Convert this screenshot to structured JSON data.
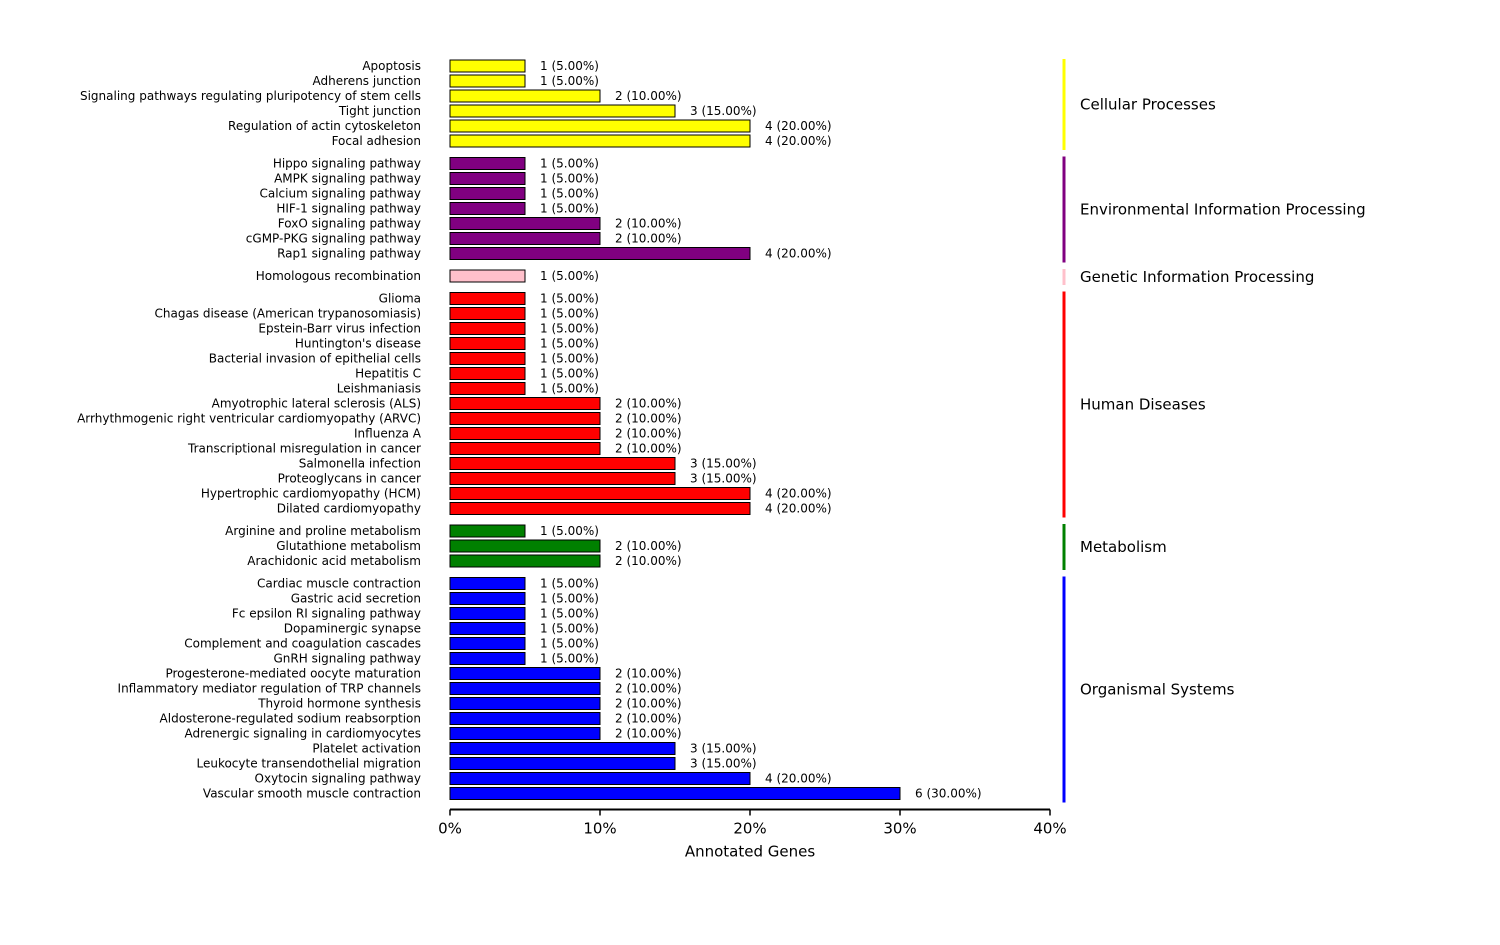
{
  "chart_data": {
    "type": "bar",
    "orientation": "horizontal",
    "title": "",
    "xlabel": "Annotated Genes",
    "ylabel": "",
    "xlim": [
      0,
      40
    ],
    "xticks": [
      "0%",
      "10%",
      "20%",
      "30%",
      "40%"
    ],
    "xtick_values": [
      0,
      10,
      20,
      30,
      40
    ],
    "grid": false,
    "legend": "none",
    "groups": [
      {
        "name": "Cellular Processes",
        "color": "#ffff00",
        "items": [
          {
            "label": "Apoptosis",
            "value": 5,
            "text": "1 (5.00%)"
          },
          {
            "label": "Adherens junction",
            "value": 5,
            "text": "1 (5.00%)"
          },
          {
            "label": "Signaling pathways regulating pluripotency of stem cells",
            "value": 10,
            "text": "2 (10.00%)"
          },
          {
            "label": "Tight junction",
            "value": 15,
            "text": "3 (15.00%)"
          },
          {
            "label": "Regulation of actin cytoskeleton",
            "value": 20,
            "text": "4 (20.00%)"
          },
          {
            "label": "Focal adhesion",
            "value": 20,
            "text": "4 (20.00%)"
          }
        ]
      },
      {
        "name": "Environmental Information Processing",
        "color": "#800080",
        "items": [
          {
            "label": "Hippo signaling pathway",
            "value": 5,
            "text": "1 (5.00%)"
          },
          {
            "label": "AMPK signaling pathway",
            "value": 5,
            "text": "1 (5.00%)"
          },
          {
            "label": "Calcium signaling pathway",
            "value": 5,
            "text": "1 (5.00%)"
          },
          {
            "label": "HIF-1 signaling pathway",
            "value": 5,
            "text": "1 (5.00%)"
          },
          {
            "label": "FoxO signaling pathway",
            "value": 10,
            "text": "2 (10.00%)"
          },
          {
            "label": "cGMP-PKG signaling pathway",
            "value": 10,
            "text": "2 (10.00%)"
          },
          {
            "label": "Rap1 signaling pathway",
            "value": 20,
            "text": "4 (20.00%)"
          }
        ]
      },
      {
        "name": "Genetic Information Processing",
        "color": "#ffc0cb",
        "items": [
          {
            "label": "Homologous recombination",
            "value": 5,
            "text": "1 (5.00%)"
          }
        ]
      },
      {
        "name": "Human Diseases",
        "color": "#ff0000",
        "items": [
          {
            "label": "Glioma",
            "value": 5,
            "text": "1 (5.00%)"
          },
          {
            "label": "Chagas disease (American trypanosomiasis)",
            "value": 5,
            "text": "1 (5.00%)"
          },
          {
            "label": "Epstein-Barr virus infection",
            "value": 5,
            "text": "1 (5.00%)"
          },
          {
            "label": "Huntington's disease",
            "value": 5,
            "text": "1 (5.00%)"
          },
          {
            "label": "Bacterial invasion of epithelial cells",
            "value": 5,
            "text": "1 (5.00%)"
          },
          {
            "label": "Hepatitis C",
            "value": 5,
            "text": "1 (5.00%)"
          },
          {
            "label": "Leishmaniasis",
            "value": 5,
            "text": "1 (5.00%)"
          },
          {
            "label": "Amyotrophic lateral sclerosis (ALS)",
            "value": 10,
            "text": "2 (10.00%)"
          },
          {
            "label": "Arrhythmogenic right ventricular cardiomyopathy (ARVC)",
            "value": 10,
            "text": "2 (10.00%)"
          },
          {
            "label": "Influenza A",
            "value": 10,
            "text": "2 (10.00%)"
          },
          {
            "label": "Transcriptional misregulation in cancer",
            "value": 10,
            "text": "2 (10.00%)"
          },
          {
            "label": "Salmonella infection",
            "value": 15,
            "text": "3 (15.00%)"
          },
          {
            "label": "Proteoglycans in cancer",
            "value": 15,
            "text": "3 (15.00%)"
          },
          {
            "label": "Hypertrophic cardiomyopathy (HCM)",
            "value": 20,
            "text": "4 (20.00%)"
          },
          {
            "label": "Dilated cardiomyopathy",
            "value": 20,
            "text": "4 (20.00%)"
          }
        ]
      },
      {
        "name": "Metabolism",
        "color": "#008000",
        "items": [
          {
            "label": "Arginine and proline metabolism",
            "value": 5,
            "text": "1 (5.00%)"
          },
          {
            "label": "Glutathione metabolism",
            "value": 10,
            "text": "2 (10.00%)"
          },
          {
            "label": "Arachidonic acid metabolism",
            "value": 10,
            "text": "2 (10.00%)"
          }
        ]
      },
      {
        "name": "Organismal Systems",
        "color": "#0000ff",
        "items": [
          {
            "label": "Cardiac muscle contraction",
            "value": 5,
            "text": "1 (5.00%)"
          },
          {
            "label": "Gastric acid secretion",
            "value": 5,
            "text": "1 (5.00%)"
          },
          {
            "label": "Fc epsilon RI signaling pathway",
            "value": 5,
            "text": "1 (5.00%)"
          },
          {
            "label": "Dopaminergic synapse",
            "value": 5,
            "text": "1 (5.00%)"
          },
          {
            "label": "Complement and coagulation cascades",
            "value": 5,
            "text": "1 (5.00%)"
          },
          {
            "label": "GnRH signaling pathway",
            "value": 5,
            "text": "1 (5.00%)"
          },
          {
            "label": "Progesterone-mediated oocyte maturation",
            "value": 10,
            "text": "2 (10.00%)"
          },
          {
            "label": "Inflammatory mediator regulation of TRP channels",
            "value": 10,
            "text": "2 (10.00%)"
          },
          {
            "label": "Thyroid hormone synthesis",
            "value": 10,
            "text": "2 (10.00%)"
          },
          {
            "label": "Aldosterone-regulated sodium reabsorption",
            "value": 10,
            "text": "2 (10.00%)"
          },
          {
            "label": "Adrenergic signaling in cardiomyocytes",
            "value": 10,
            "text": "2 (10.00%)"
          },
          {
            "label": "Platelet activation",
            "value": 15,
            "text": "3 (15.00%)"
          },
          {
            "label": "Leukocyte transendothelial migration",
            "value": 15,
            "text": "3 (15.00%)"
          },
          {
            "label": "Oxytocin signaling pathway",
            "value": 20,
            "text": "4 (20.00%)"
          },
          {
            "label": "Vascular smooth muscle contraction",
            "value": 30,
            "text": "6 (30.00%)"
          }
        ]
      }
    ]
  }
}
